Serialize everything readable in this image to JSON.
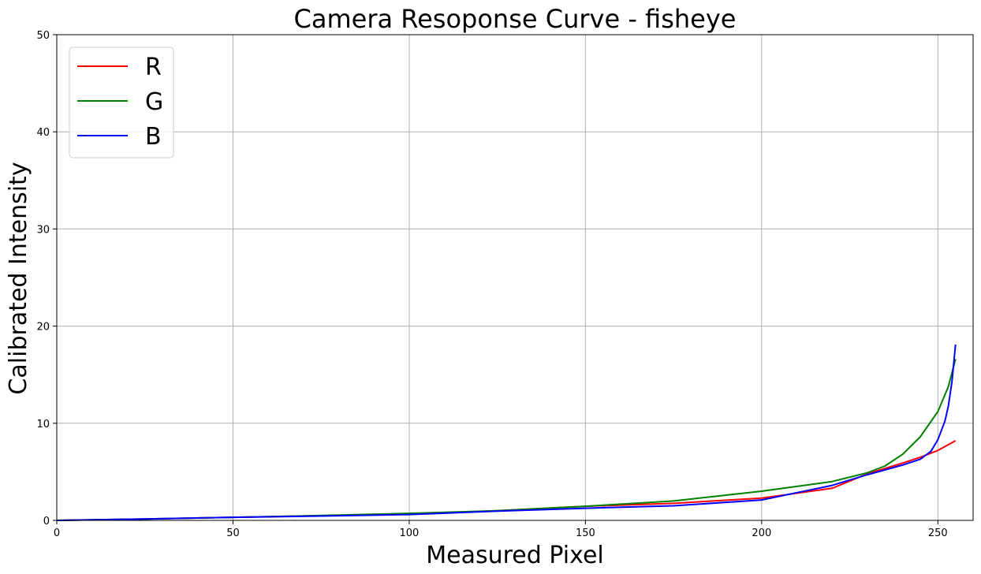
{
  "chart_data": {
    "type": "line",
    "title": "Camera Resoponse Curve - fisheye",
    "xlabel": "Measured Pixel",
    "ylabel": "Calibrated Intensity",
    "xlim": [
      0,
      260
    ],
    "ylim": [
      0,
      50
    ],
    "xticks": [
      0,
      50,
      100,
      150,
      200,
      250
    ],
    "yticks": [
      0,
      10,
      20,
      30,
      40,
      50
    ],
    "grid": true,
    "legend_position": "top-left",
    "series": [
      {
        "name": "R",
        "color": "#ff0000",
        "x": [
          0,
          25,
          50,
          75,
          100,
          125,
          150,
          175,
          200,
          220,
          230,
          240,
          245,
          250,
          255
        ],
        "y": [
          0.0,
          0.15,
          0.32,
          0.48,
          0.65,
          1.0,
          1.45,
          1.75,
          2.3,
          3.3,
          4.8,
          5.9,
          6.5,
          7.2,
          8.2
        ]
      },
      {
        "name": "G",
        "color": "#008000",
        "x": [
          0,
          25,
          50,
          75,
          100,
          125,
          150,
          175,
          200,
          220,
          230,
          235,
          240,
          245,
          250,
          253,
          255
        ],
        "y": [
          0.0,
          0.15,
          0.32,
          0.5,
          0.72,
          1.0,
          1.45,
          2.0,
          3.0,
          4.0,
          4.9,
          5.6,
          6.8,
          8.6,
          11.2,
          13.8,
          16.6
        ]
      },
      {
        "name": "B",
        "color": "#0000ff",
        "x": [
          0,
          25,
          50,
          75,
          100,
          125,
          150,
          175,
          200,
          220,
          230,
          240,
          245,
          248,
          250,
          252,
          253,
          254,
          255
        ],
        "y": [
          0.0,
          0.15,
          0.32,
          0.45,
          0.6,
          0.95,
          1.25,
          1.5,
          2.1,
          3.6,
          4.7,
          5.7,
          6.3,
          7.1,
          8.3,
          10.2,
          11.8,
          14.3,
          18.1
        ]
      }
    ]
  }
}
